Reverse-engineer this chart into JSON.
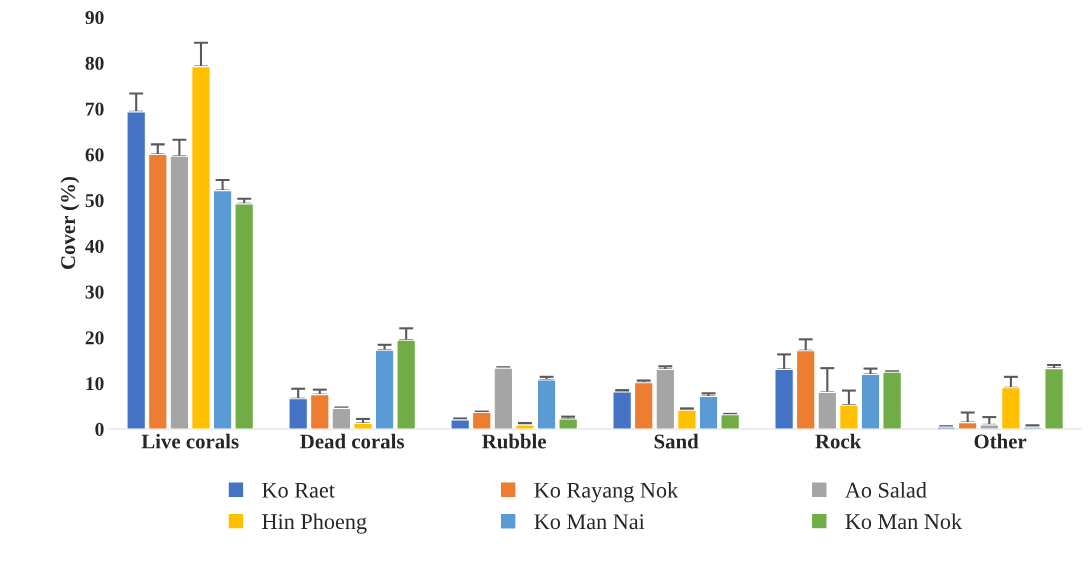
{
  "chart_data": {
    "type": "bar",
    "ylabel": "Cover (%)",
    "categories": [
      "Live corals",
      "Dead corals",
      "Rubble",
      "Sand",
      "Rock",
      "Other"
    ],
    "ylim": [
      0,
      90
    ],
    "yticks": [
      0,
      10,
      20,
      30,
      40,
      50,
      60,
      70,
      80,
      90
    ],
    "grid": false,
    "legend": "bottom",
    "series": [
      {
        "name": "Ko Raet",
        "color": "#4472c4",
        "values": [
          69.3,
          6.6,
          2.0,
          8.1,
          13.0,
          0.4
        ],
        "errors": [
          [
            69.3,
            73.3
          ],
          [
            6.6,
            8.8
          ],
          [
            2.0,
            2.3
          ],
          [
            8.1,
            8.5
          ],
          [
            13.0,
            16.3
          ],
          [
            0.4,
            0.6
          ]
        ]
      },
      {
        "name": "Ko Rayang Nok",
        "color": "#ed7d31",
        "values": [
          60.0,
          7.5,
          3.6,
          10.1,
          17.1,
          1.4
        ],
        "errors": [
          [
            60.0,
            62.2
          ],
          [
            7.5,
            8.6
          ],
          [
            3.6,
            3.8
          ],
          [
            10.1,
            10.6
          ],
          [
            17.1,
            19.6
          ],
          [
            1.4,
            3.6
          ]
        ]
      },
      {
        "name": "Ao Salad",
        "color": "#a5a5a5",
        "values": [
          59.6,
          4.5,
          13.3,
          13.0,
          8.0,
          0.9
        ],
        "errors": [
          [
            59.6,
            63.2
          ],
          [
            4.5,
            4.7
          ],
          [
            13.3,
            13.5
          ],
          [
            13.0,
            13.7
          ],
          [
            8.0,
            13.3
          ],
          [
            0.9,
            2.6
          ]
        ]
      },
      {
        "name": "Hin Phoeng",
        "color": "#ffc000",
        "values": [
          79.2,
          1.2,
          0.9,
          4.1,
          5.2,
          9.0
        ],
        "errors": [
          [
            79.2,
            84.4
          ],
          [
            1.2,
            2.2
          ],
          [
            0.9,
            1.3
          ],
          [
            4.1,
            4.5
          ],
          [
            5.2,
            8.4
          ],
          [
            9.0,
            11.4
          ]
        ]
      },
      {
        "name": "Ko Man Nai",
        "color": "#5b9bd5",
        "values": [
          52.1,
          17.2,
          10.7,
          7.1,
          11.9,
          0.4
        ],
        "errors": [
          [
            52.1,
            54.4
          ],
          [
            17.2,
            18.4
          ],
          [
            10.7,
            11.4
          ],
          [
            7.1,
            7.8
          ],
          [
            11.9,
            13.2
          ],
          [
            0.4,
            0.8
          ]
        ]
      },
      {
        "name": "Ko Man Nok",
        "color": "#70ad47",
        "values": [
          49.2,
          19.4,
          2.2,
          3.1,
          12.4,
          13.2
        ],
        "errors": [
          [
            49.2,
            50.3
          ],
          [
            19.4,
            22.0
          ],
          [
            2.2,
            2.7
          ],
          [
            3.1,
            3.3
          ],
          [
            12.4,
            12.6
          ],
          [
            13.2,
            14.0
          ]
        ]
      }
    ]
  }
}
